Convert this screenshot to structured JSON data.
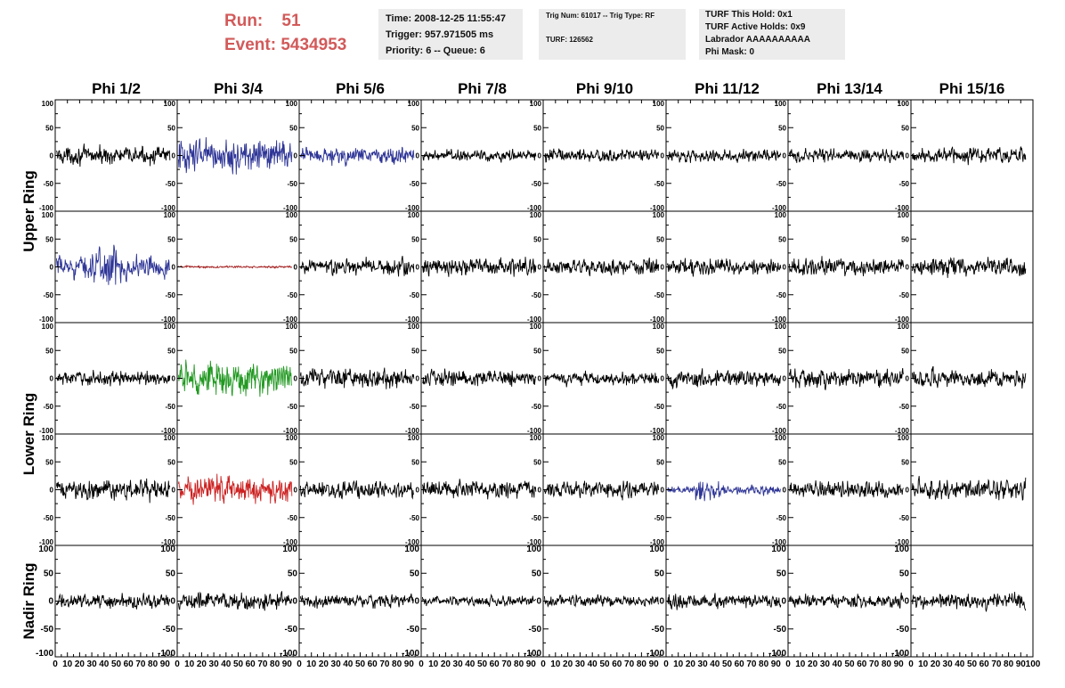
{
  "run": {
    "run_label": "Run:",
    "run_value": "51",
    "event_label": "Event:",
    "event_value": "5434953"
  },
  "info_box1": {
    "time": "Time: 2008-12-25 11:55:47",
    "trigger": "Trigger: 957.971505 ms",
    "priority": "Priority: 6 -- Queue: 6"
  },
  "info_box2": {
    "trig": "Trig Num: 61017 -- Trig Type: RF",
    "turf": "TURF: 126562"
  },
  "info_box3": {
    "hold": "TURF This Hold: 0x1",
    "active": "TURF Active Holds: 0x9",
    "labrador": "Labrador AAAAAAAAAA",
    "phimask": "Phi Mask: 0"
  },
  "chart_data": {
    "type": "line",
    "columns": [
      "Phi 1/2",
      "Phi 3/4",
      "Phi 5/6",
      "Phi 7/8",
      "Phi 9/10",
      "Phi 11/12",
      "Phi 13/14",
      "Phi 15/16"
    ],
    "row_groups": [
      {
        "label": "Upper Ring",
        "rows": [
          0,
          1
        ]
      },
      {
        "label": "Lower Ring",
        "rows": [
          2,
          3
        ]
      },
      {
        "label": "Nadir Ring",
        "rows": [
          4
        ]
      }
    ],
    "xlim": [
      0,
      100
    ],
    "ylim": [
      -100,
      100
    ],
    "x_ticks": [
      0,
      10,
      20,
      30,
      40,
      50,
      60,
      70,
      80,
      90,
      100
    ],
    "x_tick_labels": [
      "0",
      "10",
      "20",
      "30",
      "40",
      "50",
      "60",
      "70",
      "80",
      "90",
      "100"
    ],
    "y_ticks": [
      100,
      50,
      0,
      -50,
      -100
    ],
    "y_tick_labels": [
      "100",
      "50",
      "0",
      "-50",
      "-100"
    ],
    "waveform_samples": 260,
    "waveform_x_range": [
      1,
      94
    ],
    "grid": false,
    "colors": {
      "default": "#000000",
      "blue": "#2e3596",
      "red": "#cc2222",
      "darkred": "#a01818",
      "green": "#229922"
    },
    "series": [
      {
        "row": 0,
        "col": 0,
        "color": "default",
        "amplitude": 17,
        "burst": null
      },
      {
        "row": 0,
        "col": 1,
        "color": "blue",
        "amplitude": 32,
        "burst": null
      },
      {
        "row": 0,
        "col": 2,
        "color": "blue",
        "amplitude": 17,
        "burst": null
      },
      {
        "row": 0,
        "col": 3,
        "color": "default",
        "amplitude": 12,
        "burst": null
      },
      {
        "row": 0,
        "col": 4,
        "color": "default",
        "amplitude": 13,
        "burst": null
      },
      {
        "row": 0,
        "col": 5,
        "color": "default",
        "amplitude": 12,
        "burst": null
      },
      {
        "row": 0,
        "col": 6,
        "color": "default",
        "amplitude": 13,
        "burst": null
      },
      {
        "row": 0,
        "col": 7,
        "color": "default",
        "amplitude": 15,
        "burst": null
      },
      {
        "row": 1,
        "col": 0,
        "color": "blue",
        "amplitude": 22,
        "burst": [
          30,
          55,
          1.9
        ]
      },
      {
        "row": 1,
        "col": 1,
        "color": "darkred",
        "amplitude": 2,
        "burst": null
      },
      {
        "row": 1,
        "col": 2,
        "color": "default",
        "amplitude": 17,
        "burst": null
      },
      {
        "row": 1,
        "col": 3,
        "color": "default",
        "amplitude": 17,
        "burst": null
      },
      {
        "row": 1,
        "col": 4,
        "color": "default",
        "amplitude": 16,
        "burst": null
      },
      {
        "row": 1,
        "col": 5,
        "color": "default",
        "amplitude": 15,
        "burst": null
      },
      {
        "row": 1,
        "col": 6,
        "color": "default",
        "amplitude": 17,
        "burst": null
      },
      {
        "row": 1,
        "col": 7,
        "color": "default",
        "amplitude": 18,
        "burst": null
      },
      {
        "row": 2,
        "col": 0,
        "color": "default",
        "amplitude": 14,
        "burst": null
      },
      {
        "row": 2,
        "col": 1,
        "color": "green",
        "amplitude": 34,
        "burst": null
      },
      {
        "row": 2,
        "col": 2,
        "color": "default",
        "amplitude": 19,
        "burst": null
      },
      {
        "row": 2,
        "col": 3,
        "color": "default",
        "amplitude": 16,
        "burst": null
      },
      {
        "row": 2,
        "col": 4,
        "color": "default",
        "amplitude": 13,
        "burst": null
      },
      {
        "row": 2,
        "col": 5,
        "color": "default",
        "amplitude": 17,
        "burst": null
      },
      {
        "row": 2,
        "col": 6,
        "color": "default",
        "amplitude": 19,
        "burst": null
      },
      {
        "row": 2,
        "col": 7,
        "color": "default",
        "amplitude": 17,
        "burst": null
      },
      {
        "row": 3,
        "col": 0,
        "color": "default",
        "amplitude": 20,
        "burst": null
      },
      {
        "row": 3,
        "col": 1,
        "color": "red",
        "amplitude": 28,
        "burst": null
      },
      {
        "row": 3,
        "col": 2,
        "color": "default",
        "amplitude": 16,
        "burst": null
      },
      {
        "row": 3,
        "col": 3,
        "color": "default",
        "amplitude": 18,
        "burst": null
      },
      {
        "row": 3,
        "col": 4,
        "color": "default",
        "amplitude": 17,
        "burst": null
      },
      {
        "row": 3,
        "col": 5,
        "color": "blue",
        "amplitude": 9,
        "burst": [
          24,
          44,
          2.4
        ]
      },
      {
        "row": 3,
        "col": 6,
        "color": "default",
        "amplitude": 16,
        "burst": null
      },
      {
        "row": 3,
        "col": 7,
        "color": "default",
        "amplitude": 20,
        "burst": null
      },
      {
        "row": 4,
        "col": 0,
        "color": "default",
        "amplitude": 14,
        "burst": null
      },
      {
        "row": 4,
        "col": 1,
        "color": "default",
        "amplitude": 17,
        "burst": null
      },
      {
        "row": 4,
        "col": 2,
        "color": "default",
        "amplitude": 13,
        "burst": null
      },
      {
        "row": 4,
        "col": 3,
        "color": "default",
        "amplitude": 10,
        "burst": null
      },
      {
        "row": 4,
        "col": 4,
        "color": "default",
        "amplitude": 11,
        "burst": null
      },
      {
        "row": 4,
        "col": 5,
        "color": "default",
        "amplitude": 15,
        "burst": null
      },
      {
        "row": 4,
        "col": 6,
        "color": "default",
        "amplitude": 13,
        "burst": null
      },
      {
        "row": 4,
        "col": 7,
        "color": "default",
        "amplitude": 16,
        "burst": null
      }
    ]
  }
}
